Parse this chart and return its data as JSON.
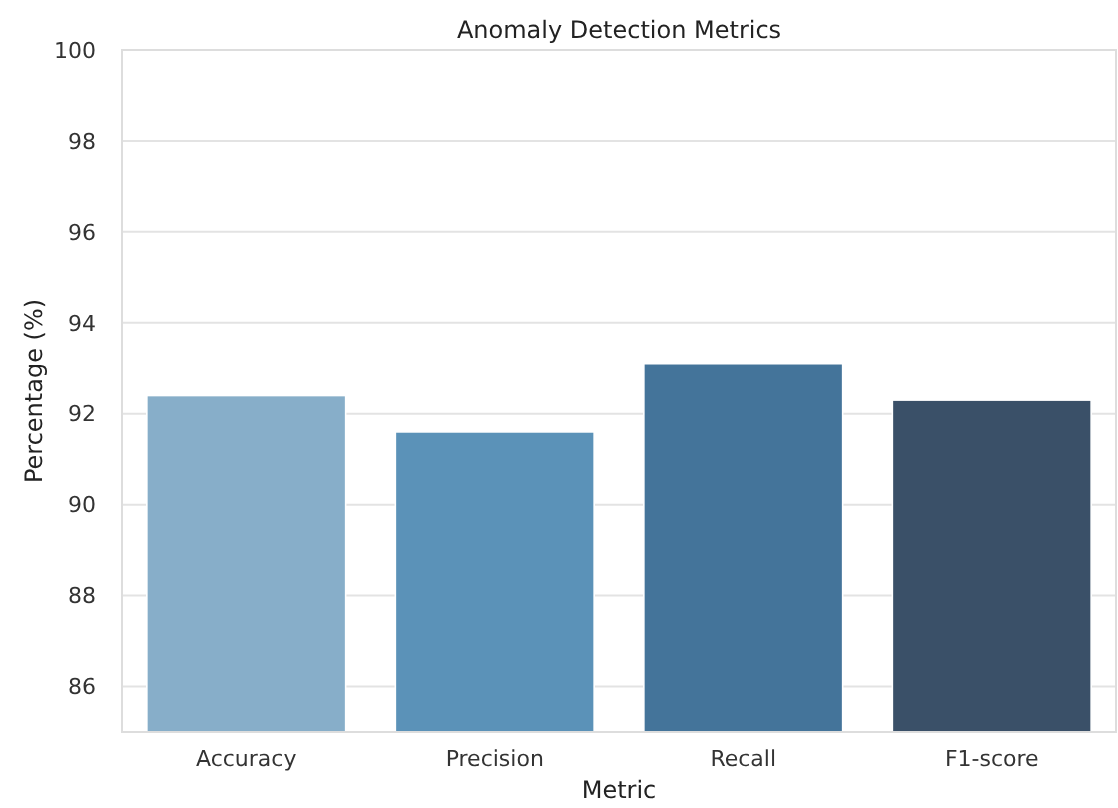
{
  "chart_data": {
    "type": "bar",
    "title": "Anomaly Detection Metrics",
    "xlabel": "Metric",
    "ylabel": "Percentage (%)",
    "categories": [
      "Accuracy",
      "Precision",
      "Recall",
      "F1-score"
    ],
    "values": [
      92.4,
      91.6,
      93.1,
      92.3
    ],
    "colors": [
      "#87aec9",
      "#5b92b8",
      "#44749a",
      "#3a5068"
    ],
    "ylim": [
      85,
      100
    ],
    "yticks": [
      86,
      88,
      90,
      92,
      94,
      96,
      98,
      100
    ],
    "grid": "y"
  }
}
